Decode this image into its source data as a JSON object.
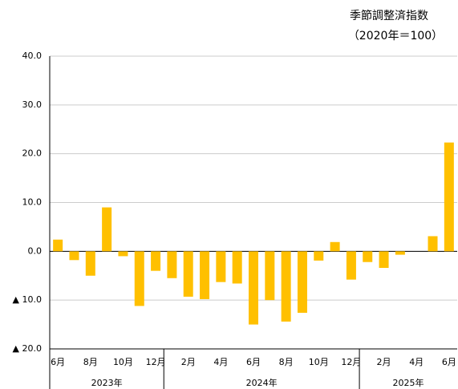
{
  "chart_data": {
    "type": "bar",
    "title": "季節調整済指数",
    "subtitle": "（2020年＝100）",
    "categories": [
      "6月",
      null,
      "8月",
      null,
      "10月",
      null,
      "12月",
      null,
      "2月",
      null,
      "4月",
      null,
      "6月",
      null,
      "8月",
      null,
      "10月",
      null,
      "12月",
      null,
      "2月",
      null,
      "4月",
      null,
      "6月"
    ],
    "x_groups": [
      {
        "name": "2023年",
        "span": 7
      },
      {
        "name": "2024年",
        "span": 12
      },
      {
        "name": "2025年",
        "span": 6
      }
    ],
    "values": [
      2.4,
      -1.8,
      -5.0,
      9.0,
      -1.0,
      -11.2,
      -4.0,
      -5.5,
      -9.3,
      -9.8,
      -6.3,
      -6.6,
      -15.0,
      -10.0,
      -14.4,
      -12.6,
      -1.9,
      1.9,
      -5.8,
      -2.2,
      -3.4,
      -0.7,
      0,
      3.1,
      22.3
    ],
    "color": "#ffc000",
    "ylim": [
      -20,
      40
    ],
    "yticks": [
      {
        "value": -20,
        "label": "▲ 20.0"
      },
      {
        "value": -10,
        "label": "▲ 10.0"
      },
      {
        "value": 0,
        "label": "0.0"
      },
      {
        "value": 10,
        "label": "10.0"
      },
      {
        "value": 20,
        "label": "20.0"
      },
      {
        "value": 30,
        "label": "30.0"
      },
      {
        "value": 40,
        "label": "40.0"
      }
    ],
    "grid": true
  }
}
